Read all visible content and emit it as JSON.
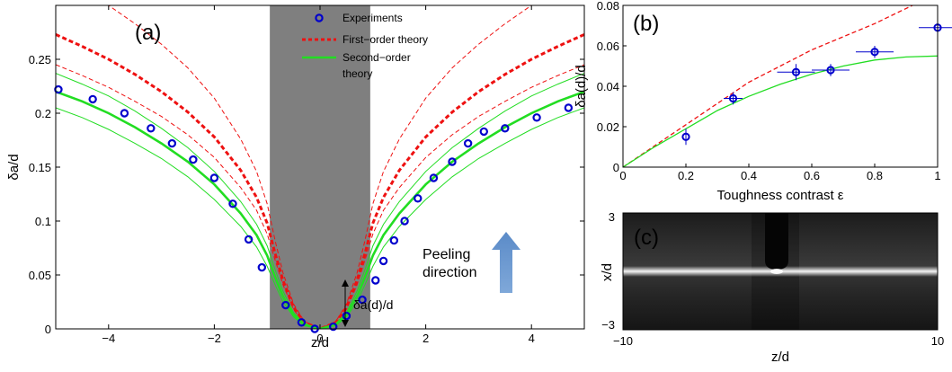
{
  "chart_data": [
    {
      "panel_label": "(a)",
      "type": "line",
      "xlabel": "z/d",
      "ylabel": "δa/d",
      "xlim": [
        -5,
        5
      ],
      "ylim": [
        0,
        0.3
      ],
      "xticks": [
        "−4",
        "−2",
        "0",
        "2",
        "4"
      ],
      "yticks": [
        "0",
        "0.05",
        "0.1",
        "0.15",
        "0.2",
        "0.25"
      ],
      "shaded_region": [
        -0.95,
        0.95
      ],
      "shade_color": "#7f7f7f",
      "legend": {
        "position": "top-right",
        "entries": [
          "Experiments",
          "First−order theory",
          "Second−order",
          "theory"
        ]
      },
      "annotations": {
        "delta_label": "δa(d)/d",
        "peel_line1": "Peeling",
        "peel_line2": "direction"
      },
      "series": [
        {
          "name": "Experiments",
          "style": "markers",
          "color": "#0000cc",
          "x": [
            -4.95,
            -4.3,
            -3.7,
            -3.2,
            -2.8,
            -2.4,
            -2.0,
            -1.65,
            -1.35,
            -1.1,
            -0.65,
            -0.35,
            -0.1,
            0.25,
            0.5,
            0.8,
            1.05,
            1.2,
            1.4,
            1.6,
            1.85,
            2.15,
            2.5,
            2.8,
            3.1,
            3.5,
            4.1,
            4.7
          ],
          "y": [
            0.222,
            0.213,
            0.2,
            0.186,
            0.172,
            0.157,
            0.14,
            0.116,
            0.083,
            0.057,
            0.022,
            0.006,
            0.0,
            0.002,
            0.012,
            0.027,
            0.045,
            0.063,
            0.082,
            0.1,
            0.121,
            0.14,
            0.155,
            0.172,
            0.183,
            0.186,
            0.196,
            0.205
          ]
        },
        {
          "name": "First−order theory",
          "style": "dash-thick",
          "color": "#ee1111",
          "x": [
            -5,
            -4.5,
            -4,
            -3.5,
            -3,
            -2.5,
            -2,
            -1.5,
            -1.2,
            -1.0,
            -0.85,
            -0.7,
            -0.5,
            -0.3,
            0,
            0.3,
            0.5,
            0.7,
            0.85,
            1.0,
            1.2,
            1.5,
            2,
            2.5,
            3,
            3.5,
            4,
            4.5,
            5
          ],
          "y": [
            0.273,
            0.262,
            0.25,
            0.236,
            0.22,
            0.201,
            0.178,
            0.147,
            0.122,
            0.098,
            0.07,
            0.045,
            0.02,
            0.006,
            0.0,
            0.006,
            0.02,
            0.045,
            0.07,
            0.098,
            0.122,
            0.147,
            0.178,
            0.201,
            0.22,
            0.236,
            0.25,
            0.262,
            0.273
          ]
        },
        {
          "name": "First−order theory upper",
          "style": "dash-thin",
          "color": "#ee1111",
          "x": [
            -5,
            -4.5,
            -4,
            -3.5,
            -3,
            -2.5,
            -2,
            -1.5,
            -1.2,
            -1.0,
            -0.85,
            -0.7,
            -0.5,
            -0.3,
            0,
            0.3,
            0.5,
            0.7,
            0.85,
            1.0,
            1.2,
            1.5,
            2,
            2.5,
            3,
            3.5,
            4,
            4.5,
            5
          ],
          "y": [
            0.327,
            0.315,
            0.3,
            0.283,
            0.264,
            0.242,
            0.214,
            0.176,
            0.146,
            0.116,
            0.082,
            0.052,
            0.023,
            0.007,
            0.0,
            0.007,
            0.023,
            0.052,
            0.082,
            0.116,
            0.146,
            0.176,
            0.214,
            0.242,
            0.264,
            0.283,
            0.3,
            0.315,
            0.327
          ]
        },
        {
          "name": "First−order theory lower",
          "style": "dash-thin",
          "color": "#ee1111",
          "x": [
            -5,
            -4.5,
            -4,
            -3.5,
            -3,
            -2.5,
            -2,
            -1.5,
            -1.2,
            -1.0,
            -0.85,
            -0.7,
            -0.5,
            -0.3,
            0,
            0.3,
            0.5,
            0.7,
            0.85,
            1.0,
            1.2,
            1.5,
            2,
            2.5,
            3,
            3.5,
            4,
            4.5,
            5
          ],
          "y": [
            0.245,
            0.235,
            0.224,
            0.211,
            0.197,
            0.18,
            0.159,
            0.131,
            0.11,
            0.088,
            0.064,
            0.041,
            0.018,
            0.005,
            0.0,
            0.005,
            0.018,
            0.041,
            0.064,
            0.088,
            0.11,
            0.131,
            0.159,
            0.18,
            0.197,
            0.211,
            0.224,
            0.235,
            0.245
          ]
        },
        {
          "name": "Second−order theory",
          "style": "solid-thick",
          "color": "#22dd22",
          "x": [
            -5,
            -4.5,
            -4,
            -3.5,
            -3,
            -2.5,
            -2,
            -1.5,
            -1.2,
            -1.0,
            -0.85,
            -0.7,
            -0.5,
            -0.3,
            0,
            0.3,
            0.5,
            0.7,
            0.85,
            1.0,
            1.2,
            1.5,
            2,
            2.5,
            3,
            3.5,
            4,
            4.5,
            5
          ],
          "y": [
            0.22,
            0.211,
            0.2,
            0.187,
            0.172,
            0.155,
            0.134,
            0.107,
            0.087,
            0.068,
            0.048,
            0.03,
            0.013,
            0.004,
            0.0,
            0.004,
            0.013,
            0.03,
            0.048,
            0.068,
            0.087,
            0.107,
            0.134,
            0.155,
            0.172,
            0.187,
            0.2,
            0.211,
            0.22
          ]
        },
        {
          "name": "Second−order theory upper",
          "style": "solid-thin",
          "color": "#22dd22",
          "x": [
            -5,
            -4.5,
            -4,
            -3.5,
            -3,
            -2.5,
            -2,
            -1.5,
            -1.2,
            -1.0,
            -0.85,
            -0.7,
            -0.5,
            -0.3,
            0,
            0.3,
            0.5,
            0.7,
            0.85,
            1.0,
            1.2,
            1.5,
            2,
            2.5,
            3,
            3.5,
            4,
            4.5,
            5
          ],
          "y": [
            0.237,
            0.227,
            0.216,
            0.202,
            0.186,
            0.168,
            0.146,
            0.118,
            0.097,
            0.077,
            0.055,
            0.035,
            0.015,
            0.005,
            0.0,
            0.005,
            0.015,
            0.035,
            0.055,
            0.077,
            0.097,
            0.118,
            0.146,
            0.168,
            0.186,
            0.202,
            0.216,
            0.227,
            0.237
          ]
        },
        {
          "name": "Second−order theory lower",
          "style": "solid-thin",
          "color": "#22dd22",
          "x": [
            -5,
            -4.5,
            -4,
            -3.5,
            -3,
            -2.5,
            -2,
            -1.5,
            -1.2,
            -1.0,
            -0.85,
            -0.7,
            -0.5,
            -0.3,
            0,
            0.3,
            0.5,
            0.7,
            0.85,
            1.0,
            1.2,
            1.5,
            2,
            2.5,
            3,
            3.5,
            4,
            4.5,
            5
          ],
          "y": [
            0.205,
            0.196,
            0.185,
            0.172,
            0.158,
            0.141,
            0.12,
            0.095,
            0.076,
            0.058,
            0.041,
            0.025,
            0.011,
            0.003,
            0.0,
            0.003,
            0.011,
            0.025,
            0.041,
            0.058,
            0.076,
            0.095,
            0.12,
            0.141,
            0.158,
            0.172,
            0.185,
            0.196,
            0.205
          ]
        }
      ]
    },
    {
      "panel_label": "(b)",
      "type": "scatter",
      "xlabel": "Toughness contrast ε",
      "ylabel": "δa(d)/d",
      "xlim": [
        0,
        1
      ],
      "ylim": [
        0,
        0.08
      ],
      "xticks": [
        "0",
        "0.2",
        "0.4",
        "0.6",
        "0.8",
        "1"
      ],
      "yticks": [
        "0",
        "0.02",
        "0.04",
        "0.06",
        "0.08"
      ],
      "series": [
        {
          "name": "Experiments",
          "style": "markers-errorbars",
          "color": "#0000cc",
          "x": [
            0.2,
            0.35,
            0.55,
            0.66,
            0.8,
            1.0
          ],
          "y": [
            0.015,
            0.034,
            0.047,
            0.048,
            0.057,
            0.069
          ],
          "xerr": [
            0.0,
            0.03,
            0.06,
            0.06,
            0.06,
            0.06
          ],
          "yerr": [
            0.004,
            0.003,
            0.004,
            0.003,
            0.003,
            0.0
          ]
        },
        {
          "name": "First−order theory",
          "style": "dash",
          "color": "#ee1111",
          "x": [
            0,
            0.2,
            0.4,
            0.6,
            0.8,
            0.92
          ],
          "y": [
            0.0,
            0.021,
            0.042,
            0.058,
            0.071,
            0.08
          ]
        },
        {
          "name": "Second−order theory",
          "style": "solid",
          "color": "#22dd22",
          "x": [
            0,
            0.1,
            0.2,
            0.3,
            0.4,
            0.5,
            0.6,
            0.7,
            0.8,
            0.9,
            1.0
          ],
          "y": [
            0.0,
            0.01,
            0.019,
            0.028,
            0.035,
            0.041,
            0.046,
            0.05,
            0.053,
            0.0545,
            0.055
          ]
        }
      ]
    },
    {
      "panel_label": "(c)",
      "type": "image",
      "xlabel": "z/d",
      "ylabel": "x/d",
      "xlim": [
        -10,
        10
      ],
      "ylim": [
        -3,
        3
      ],
      "xticks": [
        "−10",
        "10"
      ],
      "yticks": [
        "3",
        "−3"
      ]
    }
  ]
}
